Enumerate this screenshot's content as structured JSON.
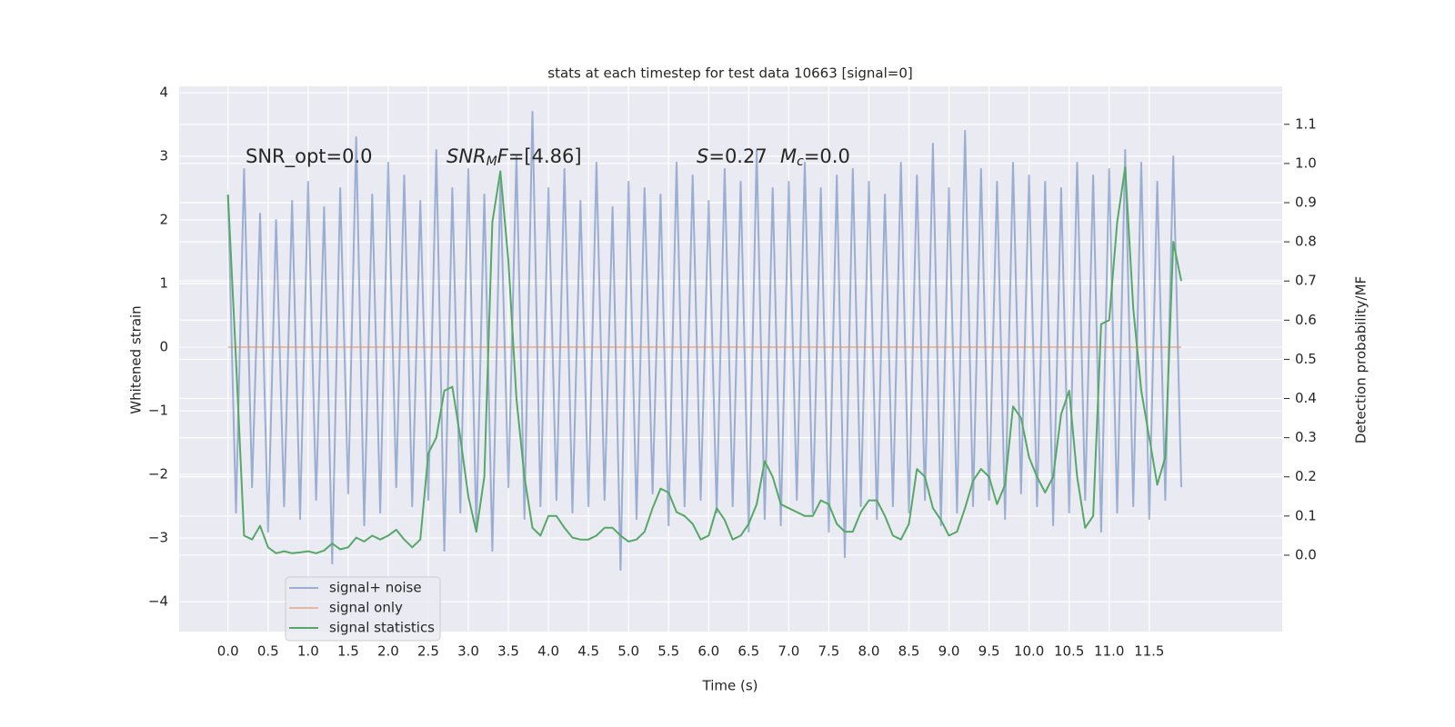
{
  "chart_data": {
    "type": "line",
    "title": "stats at each timestep for test data 10663 [signal=0]",
    "xlabel": "Time (s)",
    "ylabel": "Whitened strain",
    "y2label": "Detection probability/MF",
    "annotations": [
      [
        {
          "text": "SNR_opt=0.0"
        }
      ],
      [
        {
          "text": "SNR",
          "style": "italic"
        },
        {
          "text": "M",
          "style": "sub"
        },
        {
          "text": "F",
          "style": "italic"
        },
        {
          "text": "=[4.86]"
        }
      ],
      [
        {
          "text": "S",
          "style": "italic"
        },
        {
          "text": "=0.27"
        }
      ],
      [
        {
          "text": "M",
          "style": "italic"
        },
        {
          "text": "c",
          "style": "sub"
        },
        {
          "text": "=0.0"
        }
      ]
    ],
    "grid": true,
    "legend": "lower left",
    "xlim": [
      -0.61,
      13.16
    ],
    "ylim": [
      -4.47,
      4.1
    ],
    "y2lim": [
      -0.195,
      1.197
    ],
    "xticks": [
      {
        "value": 0,
        "label": "0.0"
      },
      {
        "value": 0.5,
        "label": "0.5"
      },
      {
        "value": 1,
        "label": "1.0"
      },
      {
        "value": 1.5,
        "label": "1.5"
      },
      {
        "value": 2,
        "label": "2.0"
      },
      {
        "value": 2.5,
        "label": "2.5"
      },
      {
        "value": 3,
        "label": "3.0"
      },
      {
        "value": 3.5,
        "label": "3.5"
      },
      {
        "value": 4,
        "label": "4.0"
      },
      {
        "value": 4.5,
        "label": "4.5"
      },
      {
        "value": 5,
        "label": "5.0"
      },
      {
        "value": 5.5,
        "label": "5.5"
      },
      {
        "value": 6,
        "label": "6.0"
      },
      {
        "value": 6.5,
        "label": "6.5"
      },
      {
        "value": 7,
        "label": "7.0"
      },
      {
        "value": 7.5,
        "label": "7.5"
      },
      {
        "value": 8,
        "label": "8.0"
      },
      {
        "value": 8.5,
        "label": "8.5"
      },
      {
        "value": 9,
        "label": "9.0"
      },
      {
        "value": 9.5,
        "label": "9.5"
      },
      {
        "value": 10,
        "label": "10.0"
      },
      {
        "value": 10.5,
        "label": "10.5"
      },
      {
        "value": 11,
        "label": "11.0"
      },
      {
        "value": 11.5,
        "label": "11.5"
      }
    ],
    "yticks": [
      {
        "value": -4,
        "label": "−4"
      },
      {
        "value": -3,
        "label": "−3"
      },
      {
        "value": -2,
        "label": "−2"
      },
      {
        "value": -1,
        "label": "−1"
      },
      0,
      1,
      2,
      3,
      4
    ],
    "y2ticks": [
      {
        "value": 0,
        "label": "0.0"
      },
      {
        "value": 0.1,
        "label": "0.1"
      },
      {
        "value": 0.2,
        "label": "0.2"
      },
      {
        "value": 0.3,
        "label": "0.3"
      },
      {
        "value": 0.4,
        "label": "0.4"
      },
      {
        "value": 0.5,
        "label": "0.5"
      },
      {
        "value": 0.6,
        "label": "0.6"
      },
      {
        "value": 0.7,
        "label": "0.7"
      },
      {
        "value": 0.8,
        "label": "0.8"
      },
      {
        "value": 0.9,
        "label": "0.9"
      },
      {
        "value": 1,
        "label": "1.0"
      },
      {
        "value": 1.1,
        "label": "1.1"
      }
    ],
    "series": [
      {
        "name": "signal+ noise",
        "color": "#4c72b0",
        "opacity": 0.5,
        "x": [
          0,
          0.1,
          0.2,
          0.3,
          0.4,
          0.5,
          0.6,
          0.7,
          0.8,
          0.9,
          1,
          1.1,
          1.2,
          1.3,
          1.4,
          1.5,
          1.6,
          1.7,
          1.8,
          1.9,
          2,
          2.1,
          2.2,
          2.3,
          2.4,
          2.5,
          2.6,
          2.7,
          2.8,
          2.9,
          3,
          3.1,
          3.2,
          3.3,
          3.4,
          3.5,
          3.6,
          3.7,
          3.8,
          3.9,
          4,
          4.1,
          4.2,
          4.3,
          4.4,
          4.5,
          4.6,
          4.7,
          4.8,
          4.9,
          5,
          5.1,
          5.2,
          5.3,
          5.4,
          5.5,
          5.6,
          5.7,
          5.8,
          5.9,
          6,
          6.1,
          6.2,
          6.3,
          6.4,
          6.5,
          6.6,
          6.7,
          6.8,
          6.9,
          7,
          7.1,
          7.2,
          7.3,
          7.4,
          7.5,
          7.6,
          7.7,
          7.8,
          7.9,
          8,
          8.1,
          8.2,
          8.3,
          8.4,
          8.5,
          8.6,
          8.7,
          8.8,
          8.9,
          9,
          9.1,
          9.2,
          9.3,
          9.4,
          9.5,
          9.6,
          9.7,
          9.8,
          9.9,
          10,
          10.1,
          10.2,
          10.3,
          10.4,
          10.5,
          10.6,
          10.7,
          10.8,
          10.9,
          11,
          11.1,
          11.2,
          11.3,
          11.4,
          11.5,
          11.6,
          11.7,
          11.8,
          11.9
        ],
        "values": [
          2.4,
          -2.6,
          2.8,
          -2.2,
          2.1,
          -2.9,
          2.0,
          -2.5,
          2.3,
          -2.7,
          2.6,
          -2.4,
          2.2,
          -3.4,
          2.5,
          -2.3,
          3.3,
          -2.8,
          2.4,
          -2.6,
          2.9,
          -2.2,
          2.7,
          -2.5,
          2.3,
          -2.4,
          3.1,
          -3.2,
          2.5,
          -2.6,
          2.8,
          -2.9,
          2.4,
          -3.2,
          2.6,
          -2.2,
          3.0,
          -2.7,
          3.7,
          -2.5,
          2.5,
          -2.4,
          2.8,
          -2.6,
          2.3,
          -2.5,
          2.9,
          -2.4,
          2.2,
          -3.5,
          2.6,
          -2.7,
          2.5,
          -2.3,
          2.4,
          -2.8,
          2.9,
          -2.5,
          2.7,
          -2.4,
          2.3,
          -2.6,
          2.8,
          -2.5,
          2.6,
          -2.9,
          3.1,
          -2.7,
          2.5,
          -2.8,
          2.6,
          -2.4,
          2.9,
          -2.6,
          2.5,
          -2.9,
          2.7,
          -3.3,
          2.8,
          -2.5,
          2.6,
          -2.7,
          2.4,
          -2.5,
          2.9,
          -2.6,
          2.7,
          -2.4,
          3.2,
          -2.8,
          2.5,
          -2.6,
          3.4,
          -2.5,
          2.8,
          -2.4,
          2.6,
          -2.7,
          2.9,
          -2.3,
          2.7,
          -2.5,
          2.6,
          -2.8,
          2.5,
          -2.6,
          2.9,
          -2.4,
          2.7,
          -2.9,
          2.8,
          -2.6,
          3.1,
          -2.5,
          2.9,
          -2.7,
          2.6,
          -2.4,
          3.0,
          -2.2
        ]
      },
      {
        "name": "signal only",
        "color": "#dd8452",
        "opacity": 0.5,
        "x": [
          0,
          11.9
        ],
        "values": [
          0,
          0
        ]
      },
      {
        "name": "signal statistics",
        "color": "#55a868",
        "opacity": 1,
        "axis": "y2",
        "x": [
          0,
          0.1,
          0.2,
          0.3,
          0.4,
          0.5,
          0.6,
          0.7,
          0.8,
          0.9,
          1,
          1.1,
          1.2,
          1.3,
          1.4,
          1.5,
          1.6,
          1.7,
          1.8,
          1.9,
          2,
          2.1,
          2.2,
          2.3,
          2.4,
          2.5,
          2.6,
          2.7,
          2.8,
          2.9,
          3,
          3.1,
          3.2,
          3.3,
          3.4,
          3.5,
          3.6,
          3.7,
          3.8,
          3.9,
          4,
          4.1,
          4.2,
          4.3,
          4.4,
          4.5,
          4.6,
          4.7,
          4.8,
          4.9,
          5,
          5.1,
          5.2,
          5.3,
          5.4,
          5.5,
          5.6,
          5.7,
          5.8,
          5.9,
          6,
          6.1,
          6.2,
          6.3,
          6.4,
          6.5,
          6.6,
          6.7,
          6.8,
          6.9,
          7,
          7.1,
          7.2,
          7.3,
          7.4,
          7.5,
          7.6,
          7.7,
          7.8,
          7.9,
          8,
          8.1,
          8.2,
          8.3,
          8.4,
          8.5,
          8.6,
          8.7,
          8.8,
          8.9,
          9,
          9.1,
          9.2,
          9.3,
          9.4,
          9.5,
          9.6,
          9.7,
          9.8,
          9.9,
          10,
          10.1,
          10.2,
          10.3,
          10.4,
          10.5,
          10.6,
          10.7,
          10.8,
          10.9,
          11,
          11.1,
          11.2,
          11.3,
          11.4,
          11.5,
          11.6,
          11.7,
          11.8,
          11.9
        ],
        "values": [
          0.92,
          0.5,
          0.05,
          0.04,
          0.075,
          0.02,
          0.005,
          0.01,
          0.005,
          0.007,
          0.01,
          0.005,
          0.012,
          0.03,
          0.015,
          0.02,
          0.045,
          0.035,
          0.05,
          0.04,
          0.05,
          0.065,
          0.04,
          0.02,
          0.04,
          0.26,
          0.3,
          0.42,
          0.43,
          0.3,
          0.15,
          0.06,
          0.2,
          0.85,
          0.98,
          0.75,
          0.4,
          0.2,
          0.07,
          0.05,
          0.1,
          0.1,
          0.07,
          0.045,
          0.04,
          0.04,
          0.05,
          0.07,
          0.07,
          0.05,
          0.035,
          0.04,
          0.06,
          0.12,
          0.17,
          0.16,
          0.11,
          0.1,
          0.08,
          0.04,
          0.05,
          0.12,
          0.09,
          0.04,
          0.05,
          0.08,
          0.13,
          0.24,
          0.2,
          0.13,
          0.12,
          0.11,
          0.1,
          0.1,
          0.14,
          0.13,
          0.08,
          0.06,
          0.06,
          0.11,
          0.14,
          0.14,
          0.1,
          0.05,
          0.04,
          0.08,
          0.22,
          0.2,
          0.12,
          0.09,
          0.05,
          0.06,
          0.12,
          0.19,
          0.22,
          0.2,
          0.13,
          0.18,
          0.38,
          0.35,
          0.25,
          0.2,
          0.16,
          0.2,
          0.36,
          0.42,
          0.2,
          0.07,
          0.1,
          0.59,
          0.6,
          0.85,
          0.99,
          0.63,
          0.42,
          0.3,
          0.18,
          0.25,
          0.8,
          0.7
        ]
      }
    ]
  }
}
